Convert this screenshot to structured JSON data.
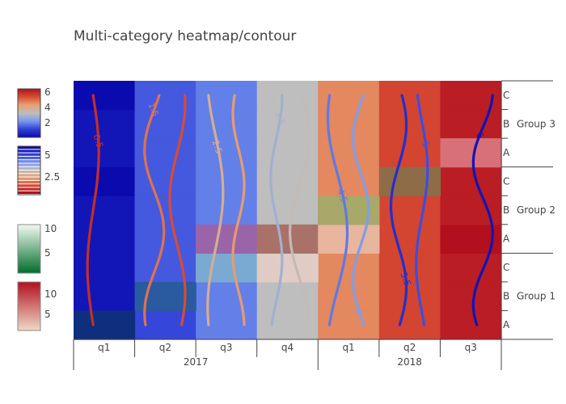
{
  "chart_data": {
    "type": "heatmap",
    "title": "Multi-category heatmap/contour",
    "x_categories": [
      {
        "year": "2017",
        "quarters": [
          "q1",
          "q2",
          "q3",
          "q4"
        ]
      },
      {
        "year": "2018",
        "quarters": [
          "q1",
          "q2",
          "q3"
        ]
      }
    ],
    "y_categories": [
      {
        "group": "Group 1",
        "levels": [
          "A",
          "B",
          "C"
        ]
      },
      {
        "group": "Group 2",
        "levels": [
          "A",
          "B",
          "C"
        ]
      },
      {
        "group": "Group 3",
        "levels": [
          "A",
          "B",
          "C"
        ]
      }
    ],
    "heatmap_colorscale": [
      "#0a0aae",
      "#3040d8",
      "#7898ee",
      "#bebebe",
      "#e8a070",
      "#d84d34",
      "#b2101e"
    ],
    "heatmap_colorbar_ticks": [
      "2",
      "4",
      "6"
    ],
    "heatmap_z": [
      [
        1.0,
        2.0,
        2.6,
        3.8,
        5.0,
        5.8,
        6.4
      ],
      [
        1.2,
        2.2,
        2.6,
        3.8,
        5.0,
        5.8,
        6.4
      ],
      [
        1.2,
        2.2,
        2.6,
        3.8,
        5.0,
        5.8,
        6.4
      ],
      [
        1.2,
        2.2,
        2.6,
        3.8,
        5.0,
        5.8,
        6.6
      ],
      [
        1.2,
        2.2,
        2.6,
        3.8,
        5.0,
        5.8,
        6.4
      ],
      [
        1.0,
        2.2,
        2.6,
        3.8,
        5.0,
        5.8,
        6.4
      ],
      [
        1.2,
        2.2,
        2.6,
        3.8,
        5.0,
        5.8,
        6.4
      ],
      [
        1.2,
        2.2,
        2.6,
        3.8,
        5.0,
        5.8,
        6.4
      ],
      [
        1.0,
        2.2,
        2.6,
        3.8,
        5.0,
        5.8,
        6.4
      ]
    ],
    "overlay_cells": [
      {
        "row": 0,
        "col": 0,
        "color": "#0e2e7e"
      },
      {
        "row": 1,
        "col": 1,
        "color": "#2a5aa0"
      },
      {
        "row": 2,
        "col": 2,
        "color": "#7aaad2"
      },
      {
        "row": 2,
        "col": 3,
        "color": "#e0ccc4"
      },
      {
        "row": 3,
        "col": 2,
        "color": "#9a64a8"
      },
      {
        "row": 3,
        "col": 3,
        "color": "#a87268"
      },
      {
        "row": 3,
        "col": 4,
        "color": "#e8b69c"
      },
      {
        "row": 4,
        "col": 4,
        "color": "#a8a868"
      },
      {
        "row": 5,
        "col": 5,
        "color": "#8e6c48"
      },
      {
        "row": 6,
        "col": 6,
        "color": "#d87078"
      }
    ],
    "contour_colorscale": [
      "#b2101e",
      "#d84d34",
      "#e8a070",
      "#bebebe",
      "#7898ee",
      "#3040d8",
      "#0a0aae"
    ],
    "contour_colorbar_ticks": [
      "2.5",
      "5"
    ],
    "contour_lines": [
      {
        "col": 0,
        "level": 0.5,
        "label": "0.5",
        "label_row": 6.4
      },
      {
        "col": 1,
        "level": 1.0,
        "label": "",
        "label_row": -1
      },
      {
        "col": 1,
        "level": 1.5,
        "label": "1.5",
        "label_row": 7.5
      },
      {
        "col": 2,
        "level": 2.0,
        "label": "",
        "label_row": -1
      },
      {
        "col": 2,
        "level": 2.5,
        "label": "2.5",
        "label_row": 6.2
      },
      {
        "col": 3,
        "level": 3.0,
        "label": "3",
        "label_row": 3.6
      },
      {
        "col": 3,
        "level": 3.5,
        "label": "3.5",
        "label_row": 7.2
      },
      {
        "col": 4,
        "level": 4.0,
        "label": "4",
        "label_row": 0.5
      },
      {
        "col": 4,
        "level": 4.5,
        "label": "4.5",
        "label_row": 4.5
      },
      {
        "col": 5,
        "level": 5.0,
        "label": "5",
        "label_row": 6.3
      },
      {
        "col": 5,
        "level": 5.5,
        "label": "5.5",
        "label_row": 1.6
      },
      {
        "col": 6,
        "level": 6.0,
        "label": "6",
        "label_row": 6.6
      }
    ],
    "colorbar3_colors": [
      "#006d2c",
      "#f2faf0"
    ],
    "colorbar3_ticks": [
      "5",
      "10"
    ],
    "colorbar4_colors": [
      "#f0d8c8",
      "#b2101e"
    ],
    "colorbar4_ticks": [
      "5",
      "10"
    ]
  }
}
